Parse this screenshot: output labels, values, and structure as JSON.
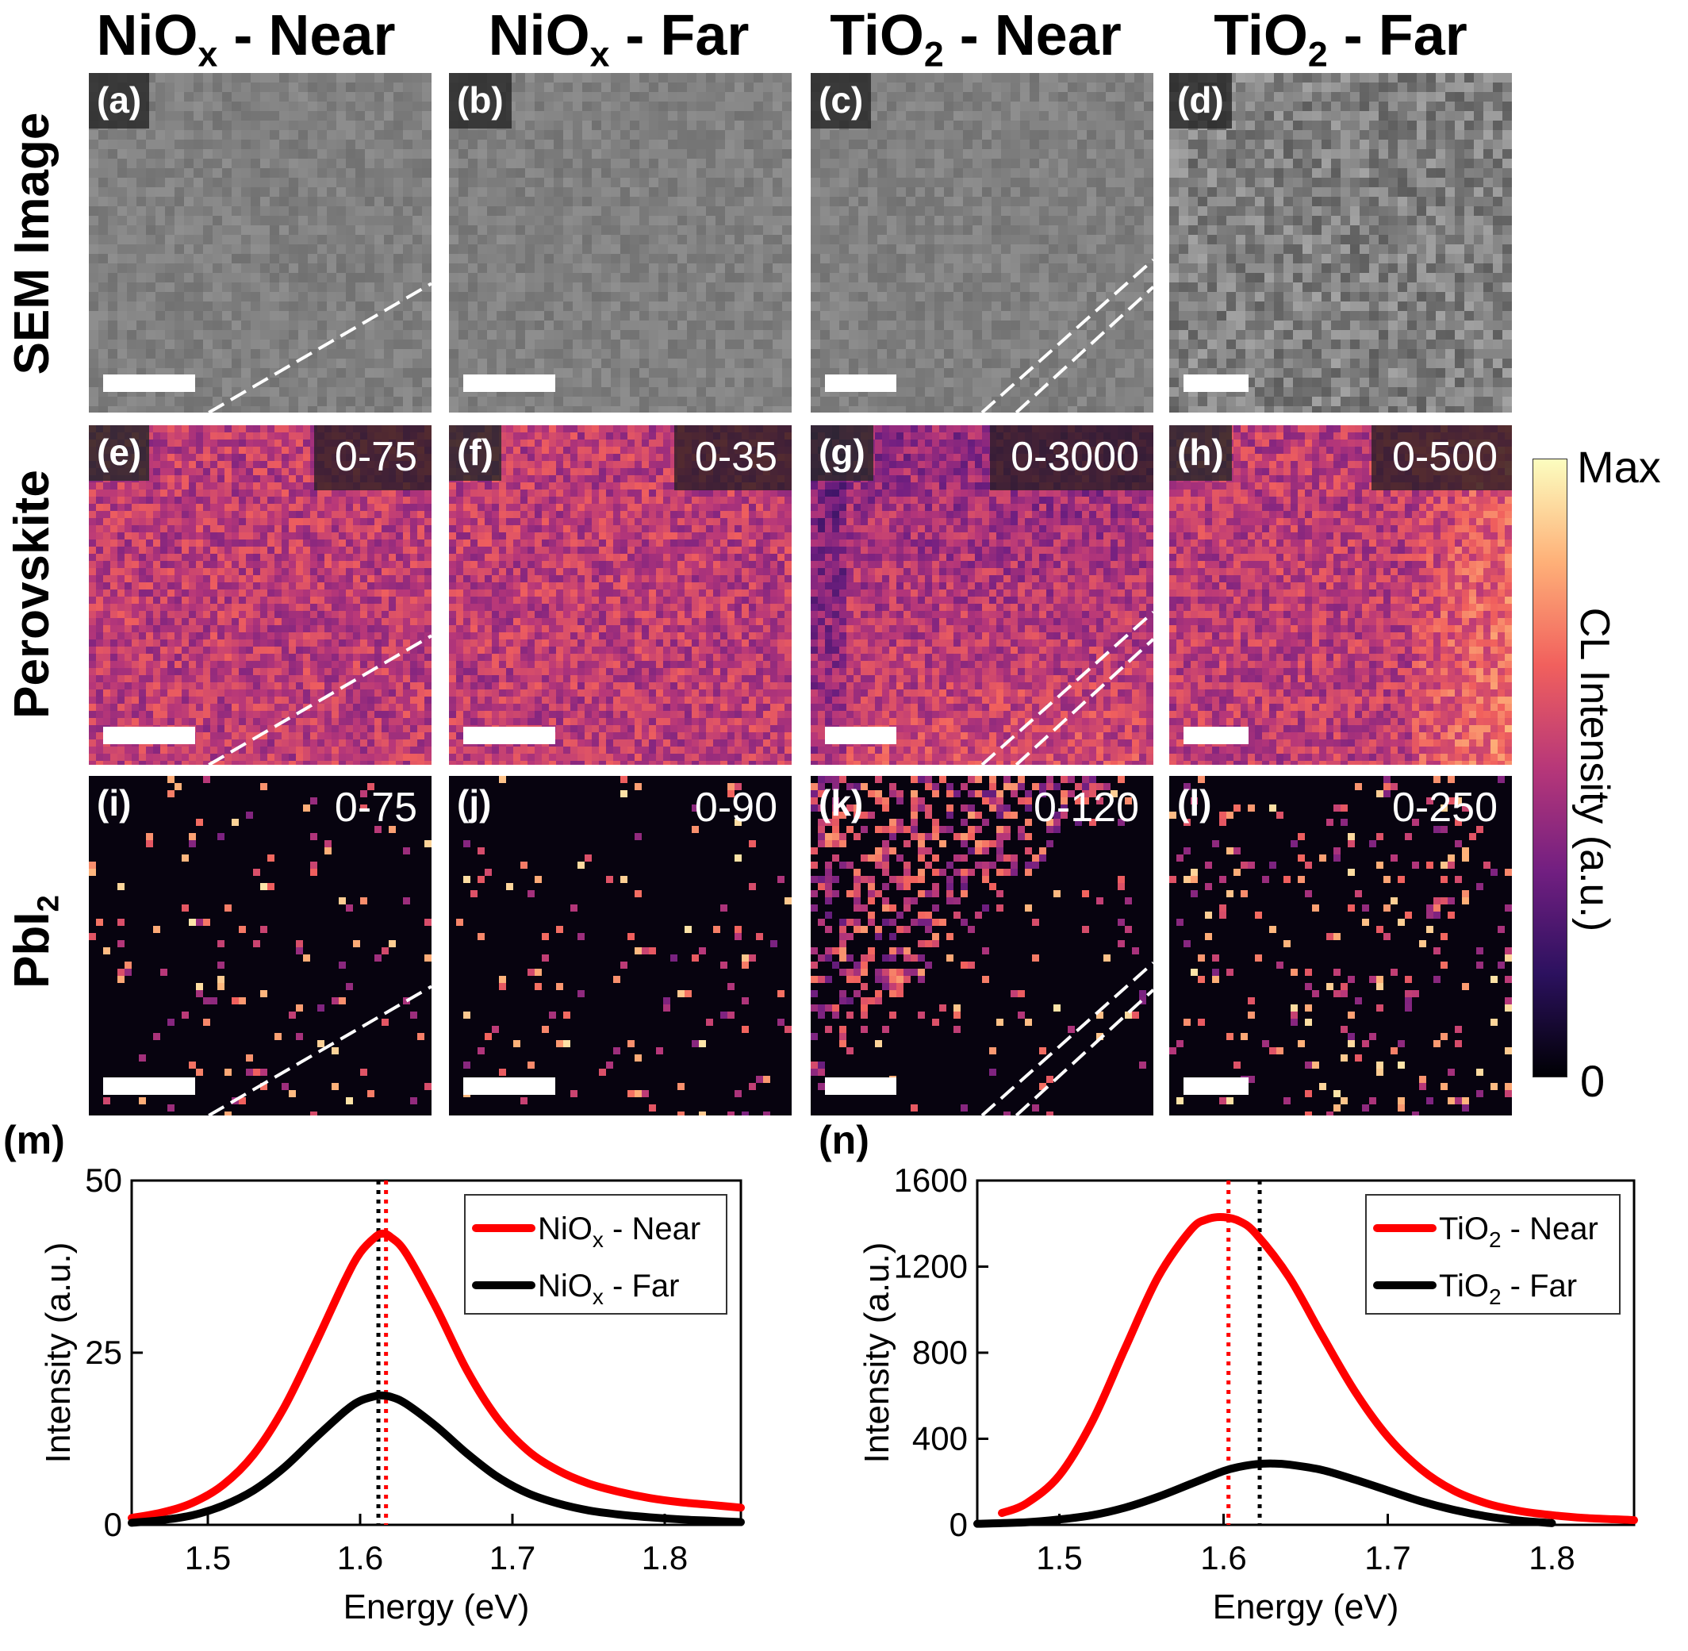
{
  "column_headers": [
    {
      "main": "NiO",
      "sub": "x",
      "rest": " - Near"
    },
    {
      "main": "NiO",
      "sub": "x",
      "rest": " - Far"
    },
    {
      "main": "TiO",
      "sub": "2",
      "rest": " - Near"
    },
    {
      "main": "TiO",
      "sub": "2",
      "rest": " - Far"
    }
  ],
  "row_headers": [
    {
      "main": "SEM Image",
      "sub": ""
    },
    {
      "main": "Perovskite",
      "sub": ""
    },
    {
      "main": "PbI",
      "sub": "2"
    }
  ],
  "panels": [
    {
      "label": "(a)",
      "range": "",
      "kind": "sem"
    },
    {
      "label": "(b)",
      "range": "",
      "kind": "sem"
    },
    {
      "label": "(c)",
      "range": "",
      "kind": "sem"
    },
    {
      "label": "(d)",
      "range": "",
      "kind": "sem"
    },
    {
      "label": "(e)",
      "range": "0-75",
      "kind": "perov"
    },
    {
      "label": "(f)",
      "range": "0-35",
      "kind": "perov"
    },
    {
      "label": "(g)",
      "range": "0-3000",
      "kind": "perov"
    },
    {
      "label": "(h)",
      "range": "0-500",
      "kind": "perov"
    },
    {
      "label": "(i)",
      "range": "0-75",
      "kind": "pbi"
    },
    {
      "label": "(j)",
      "range": "0-90",
      "kind": "pbi"
    },
    {
      "label": "(k)",
      "range": "0-120",
      "kind": "pbi"
    },
    {
      "label": "(l)",
      "range": "0-250",
      "kind": "pbi"
    }
  ],
  "colorbar": {
    "max_label": "Max",
    "min_label": "0",
    "title": "CL Intensity (a.u.)",
    "colormap": [
      "#000004",
      "#2c115f",
      "#721f81",
      "#b73779",
      "#f1605d",
      "#feb078",
      "#fcfdbf"
    ]
  },
  "colors": {
    "near": "#ff0000",
    "far": "#000000",
    "sem_gray": "#8c8c8c"
  },
  "chart_data": [
    {
      "panel_label": "(m)",
      "type": "line",
      "xlabel": "Energy (eV)",
      "ylabel": "Intensity (a.u.)",
      "xlim": [
        1.45,
        1.85
      ],
      "ylim": [
        0,
        50
      ],
      "xticks": [
        "1.5",
        "1.6",
        "1.7",
        "1.8"
      ],
      "yticks": [
        "0",
        "25",
        "50"
      ],
      "legend_position": "top-right",
      "series": [
        {
          "name": "NiO",
          "name_sub": "x",
          "name_rest": " - Near",
          "color": "#ff0000",
          "x": [
            1.45,
            1.47,
            1.49,
            1.51,
            1.53,
            1.55,
            1.57,
            1.59,
            1.6,
            1.61,
            1.615,
            1.62,
            1.63,
            1.65,
            1.67,
            1.69,
            1.71,
            1.73,
            1.75,
            1.77,
            1.79,
            1.81,
            1.83,
            1.85
          ],
          "y": [
            1.0,
            1.8,
            3.2,
            5.8,
            10.2,
            17.0,
            26.0,
            35.5,
            39.5,
            41.8,
            42.3,
            41.8,
            39.5,
            31.5,
            22.5,
            15.5,
            10.8,
            7.9,
            6.0,
            4.8,
            3.9,
            3.3,
            2.9,
            2.5
          ]
        },
        {
          "name": "NiO",
          "name_sub": "x",
          "name_rest": " - Far",
          "color": "#000000",
          "x": [
            1.45,
            1.47,
            1.49,
            1.51,
            1.53,
            1.55,
            1.57,
            1.59,
            1.6,
            1.61,
            1.613,
            1.62,
            1.63,
            1.65,
            1.67,
            1.69,
            1.71,
            1.73,
            1.75,
            1.77,
            1.79,
            1.81,
            1.83,
            1.85
          ],
          "y": [
            0.3,
            0.7,
            1.4,
            2.8,
            5.0,
            8.3,
            12.5,
            16.5,
            18.0,
            18.7,
            18.8,
            18.6,
            17.6,
            14.3,
            10.4,
            7.0,
            4.6,
            3.1,
            2.1,
            1.5,
            1.1,
            0.8,
            0.6,
            0.4
          ]
        }
      ],
      "vlines": [
        {
          "x": 1.612,
          "color": "#000000"
        },
        {
          "x": 1.617,
          "color": "#ff0000"
        }
      ]
    },
    {
      "panel_label": "(n)",
      "type": "line",
      "xlabel": "Energy (eV)",
      "ylabel": "Intensity (a.u.)",
      "xlim": [
        1.45,
        1.85
      ],
      "ylim": [
        0,
        1600
      ],
      "xticks": [
        "1.5",
        "1.6",
        "1.7",
        "1.8"
      ],
      "yticks": [
        "0",
        "400",
        "800",
        "1200",
        "1600"
      ],
      "legend_position": "top-right",
      "series": [
        {
          "name": "TiO",
          "name_sub": "2",
          "name_rest": " - Near",
          "color": "#ff0000",
          "x": [
            1.465,
            1.48,
            1.5,
            1.52,
            1.54,
            1.56,
            1.58,
            1.59,
            1.6,
            1.61,
            1.62,
            1.64,
            1.66,
            1.68,
            1.7,
            1.72,
            1.74,
            1.76,
            1.78,
            1.8,
            1.82,
            1.85
          ],
          "y": [
            55,
            100,
            230,
            480,
            820,
            1150,
            1370,
            1420,
            1430,
            1410,
            1350,
            1150,
            880,
            620,
            410,
            260,
            160,
            100,
            65,
            45,
            32,
            22
          ]
        },
        {
          "name": "TiO",
          "name_sub": "2",
          "name_rest": " - Far",
          "color": "#000000",
          "x": [
            1.45,
            1.48,
            1.5,
            1.52,
            1.54,
            1.56,
            1.58,
            1.6,
            1.61,
            1.62,
            1.63,
            1.64,
            1.66,
            1.68,
            1.7,
            1.72,
            1.74,
            1.76,
            1.78,
            1.8
          ],
          "y": [
            5,
            12,
            25,
            45,
            80,
            130,
            190,
            250,
            270,
            282,
            285,
            280,
            255,
            210,
            160,
            110,
            70,
            40,
            20,
            8
          ]
        }
      ],
      "vlines": [
        {
          "x": 1.603,
          "color": "#ff0000"
        },
        {
          "x": 1.622,
          "color": "#000000"
        }
      ]
    }
  ]
}
